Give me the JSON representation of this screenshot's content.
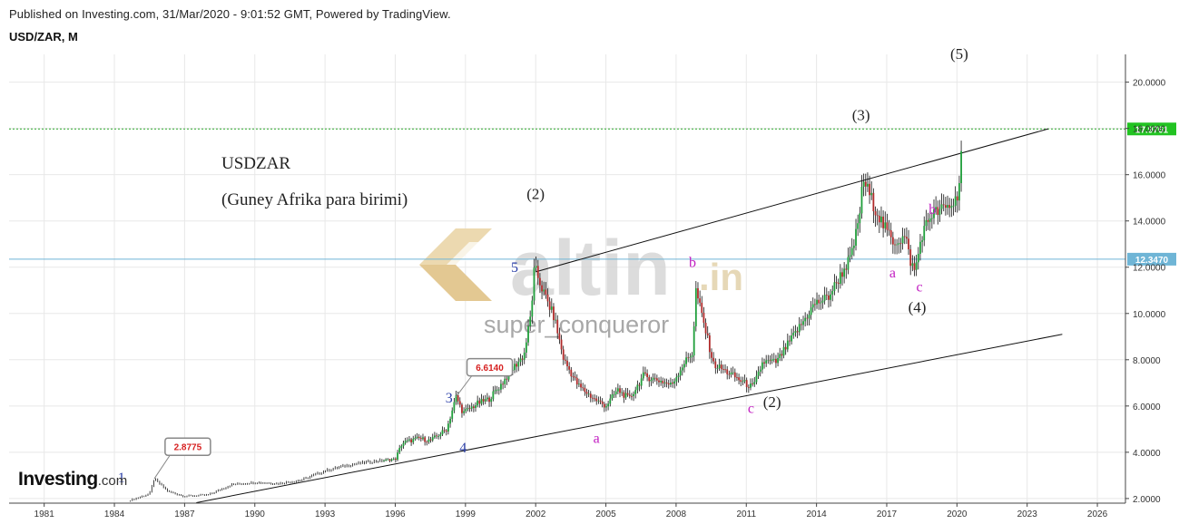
{
  "header": {
    "published": "Published on Investing.com, 31/Mar/2020 - 9:01:52 GMT, Powered by TradingView.",
    "symbol": "USD/ZAR, M"
  },
  "logo": {
    "main": "Investing",
    "suffix": ".com"
  },
  "watermark": {
    "brand": "altin",
    "tld": ".in",
    "user": "super_conqueror"
  },
  "annotations": {
    "title": "USDZAR",
    "subtitle": "(Guney Afrika para birimi)"
  },
  "colors": {
    "up": "#1f9e3a",
    "down": "#b02a2a",
    "wick": "#111111",
    "grid": "#e8e8e8",
    "current_line": "#2ca82c",
    "current_badge": "#22c322",
    "level_line": "#6fb5d6",
    "level_badge": "#6fb5d6",
    "wave_black": "#222222",
    "wave_blue": "#2b3fa8",
    "wave_magenta": "#c21fc2",
    "callout_text": "#d62020"
  },
  "chart_data": {
    "type": "candlestick",
    "title": "USD/ZAR, M",
    "timeframe": "Monthly",
    "x_range": [
      1979.5,
      2027.2
    ],
    "y_range": [
      1.8,
      21.2
    ],
    "x_ticks": [
      {
        "value": 1981,
        "label": "1981"
      },
      {
        "value": 1984,
        "label": "1984"
      },
      {
        "value": 1987,
        "label": "1987"
      },
      {
        "value": 1990,
        "label": "1990"
      },
      {
        "value": 1993,
        "label": "1993"
      },
      {
        "value": 1996,
        "label": "1996"
      },
      {
        "value": 1999,
        "label": "1999"
      },
      {
        "value": 2002,
        "label": "2002"
      },
      {
        "value": 2005,
        "label": "2005"
      },
      {
        "value": 2008,
        "label": "2008"
      },
      {
        "value": 2011,
        "label": "2011"
      },
      {
        "value": 2014,
        "label": "2014"
      },
      {
        "value": 2017,
        "label": "2017"
      },
      {
        "value": 2020,
        "label": "2020"
      },
      {
        "value": 2023,
        "label": "2023"
      },
      {
        "value": 2026,
        "label": "2026"
      }
    ],
    "y_ticks": [
      {
        "value": 2,
        "label": "2.0000"
      },
      {
        "value": 4,
        "label": "4.0000"
      },
      {
        "value": 6,
        "label": "6.0000"
      },
      {
        "value": 8,
        "label": "8.0000"
      },
      {
        "value": 10,
        "label": "10.0000"
      },
      {
        "value": 12,
        "label": "12.0000"
      },
      {
        "value": 14,
        "label": "14.0000"
      },
      {
        "value": 16,
        "label": "16.0000"
      },
      {
        "value": 18,
        "label": "18.0000"
      },
      {
        "value": 20,
        "label": "20.0000"
      }
    ],
    "price_path": [
      [
        1984.6,
        1.9
      ],
      [
        1985.5,
        2.2
      ],
      [
        1985.7,
        2.85
      ],
      [
        1986.3,
        2.3
      ],
      [
        1987.0,
        2.1
      ],
      [
        1988.0,
        2.15
      ],
      [
        1989.0,
        2.6
      ],
      [
        1990.0,
        2.7
      ],
      [
        1991.0,
        2.65
      ],
      [
        1992.0,
        2.8
      ],
      [
        1993.0,
        3.2
      ],
      [
        1994.0,
        3.45
      ],
      [
        1995.0,
        3.6
      ],
      [
        1996.0,
        3.7
      ],
      [
        1996.3,
        4.4
      ],
      [
        1997.0,
        4.6
      ],
      [
        1997.5,
        4.5
      ],
      [
        1998.2,
        5.0
      ],
      [
        1998.6,
        6.4
      ],
      [
        1998.9,
        5.7
      ],
      [
        1999.5,
        6.1
      ],
      [
        2000.0,
        6.3
      ],
      [
        2000.5,
        6.9
      ],
      [
        2001.0,
        7.6
      ],
      [
        2001.5,
        8.2
      ],
      [
        2001.8,
        10.0
      ],
      [
        2001.95,
        12.0
      ],
      [
        2002.3,
        11.0
      ],
      [
        2002.8,
        9.8
      ],
      [
        2003.2,
        8.0
      ],
      [
        2003.8,
        6.9
      ],
      [
        2004.5,
        6.3
      ],
      [
        2005.0,
        6.0
      ],
      [
        2005.5,
        6.7
      ],
      [
        2006.0,
        6.3
      ],
      [
        2006.6,
        7.3
      ],
      [
        2007.3,
        7.1
      ],
      [
        2007.8,
        6.9
      ],
      [
        2008.3,
        7.8
      ],
      [
        2008.7,
        8.3
      ],
      [
        2008.85,
        11.0
      ],
      [
        2009.2,
        9.5
      ],
      [
        2009.6,
        7.8
      ],
      [
        2010.3,
        7.4
      ],
      [
        2010.9,
        7.0
      ],
      [
        2011.3,
        6.8
      ],
      [
        2011.7,
        7.9
      ],
      [
        2012.3,
        7.9
      ],
      [
        2012.8,
        8.7
      ],
      [
        2013.4,
        9.6
      ],
      [
        2013.9,
        10.4
      ],
      [
        2014.5,
        10.7
      ],
      [
        2015.0,
        11.6
      ],
      [
        2015.5,
        12.5
      ],
      [
        2015.8,
        14.0
      ],
      [
        2016.0,
        15.8
      ],
      [
        2016.4,
        14.8
      ],
      [
        2016.9,
        13.7
      ],
      [
        2017.3,
        13.1
      ],
      [
        2017.8,
        13.3
      ],
      [
        2018.0,
        12.3
      ],
      [
        2018.2,
        11.8
      ],
      [
        2018.5,
        13.4
      ],
      [
        2018.9,
        14.3
      ],
      [
        2019.2,
        14.4
      ],
      [
        2019.6,
        14.6
      ],
      [
        2019.9,
        14.8
      ],
      [
        2020.05,
        15.3
      ],
      [
        2020.15,
        16.2
      ],
      [
        2020.23,
        17.98
      ]
    ],
    "current_price": {
      "value": 17.9761,
      "label": "17.9761"
    },
    "level_line": {
      "value": 12.347,
      "label": "12.3470"
    },
    "trendlines": [
      {
        "name": "upper-channel",
        "from": [
          2002.0,
          11.8
        ],
        "to": [
          2023.9,
          17.98
        ]
      },
      {
        "name": "lower-channel",
        "from": [
          1987.5,
          1.82
        ],
        "to": [
          2024.5,
          9.1
        ]
      }
    ],
    "callouts": [
      {
        "label": "2.8775",
        "x": 1985.7,
        "y": 2.85
      },
      {
        "label": "6.6140",
        "x": 1998.6,
        "y": 6.4
      }
    ],
    "wave_labels": [
      {
        "text": "(5)",
        "x": 2020.1,
        "y": 21.0,
        "color": "wave_black"
      },
      {
        "text": "(3)",
        "x": 2015.9,
        "y": 18.35,
        "color": "wave_black"
      },
      {
        "text": "(2)",
        "x": 2002.0,
        "y": 14.95,
        "color": "wave_black"
      },
      {
        "text": "(4)",
        "x": 2018.3,
        "y": 10.05,
        "color": "wave_black"
      },
      {
        "text": "(2)",
        "x": 2012.1,
        "y": 5.95,
        "color": "wave_black"
      },
      {
        "text": "5",
        "x": 2001.1,
        "y": 11.8,
        "color": "wave_blue"
      },
      {
        "text": "3",
        "x": 1998.3,
        "y": 6.15,
        "color": "wave_blue"
      },
      {
        "text": "4",
        "x": 1998.9,
        "y": 4.0,
        "color": "wave_blue"
      },
      {
        "text": "1",
        "x": 1984.3,
        "y": 2.7,
        "color": "wave_blue"
      },
      {
        "text": "b",
        "x": 2008.7,
        "y": 12.0,
        "color": "wave_magenta"
      },
      {
        "text": "a",
        "x": 2004.6,
        "y": 4.4,
        "color": "wave_magenta"
      },
      {
        "text": "c",
        "x": 2011.2,
        "y": 5.7,
        "color": "wave_magenta"
      },
      {
        "text": "b",
        "x": 2018.95,
        "y": 14.3,
        "color": "wave_magenta"
      },
      {
        "text": "a",
        "x": 2017.25,
        "y": 11.55,
        "color": "wave_magenta"
      },
      {
        "text": "c",
        "x": 2018.4,
        "y": 10.95,
        "color": "wave_magenta"
      }
    ]
  }
}
